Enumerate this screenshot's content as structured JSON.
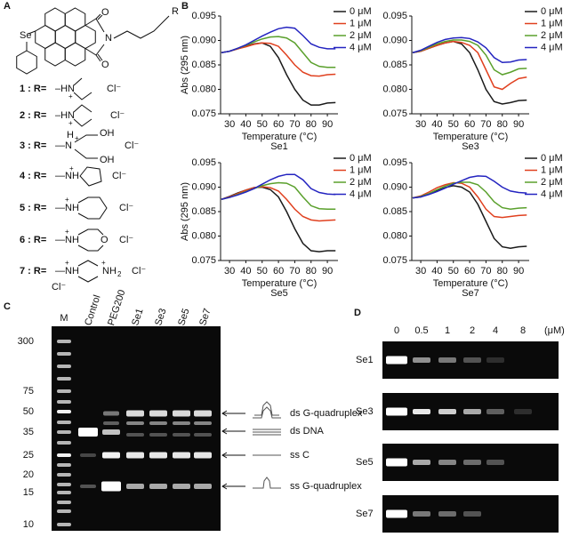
{
  "panel_a": {
    "label": "A",
    "core": {
      "selenium": "Se",
      "oxygen_top": "O",
      "nitrogen": "N",
      "r_group": "R",
      "oxygen_bottom": "O"
    },
    "compounds": [
      {
        "label": "1 :  R=",
        "atoms": [
          "–HN",
          "+"
        ],
        "counterions": [
          "Cl⁻"
        ]
      },
      {
        "label": "2 :  R=",
        "atoms": [
          "–HN",
          "+"
        ],
        "counterions": [
          "Cl⁻"
        ]
      },
      {
        "label": "3 :  R=",
        "atoms": [
          "—N",
          "H",
          "+",
          "OH",
          "OH"
        ],
        "counterions": [
          "Cl⁻"
        ]
      },
      {
        "label": "4 :  R=",
        "atoms": [
          "—NH",
          "+"
        ],
        "counterions": [
          "Cl⁻"
        ]
      },
      {
        "label": "5 :  R=",
        "atoms": [
          "—NH",
          "+"
        ],
        "counterions": [
          "Cl⁻"
        ]
      },
      {
        "label": "6 :  R=",
        "atoms": [
          "—NH",
          "+",
          "O"
        ],
        "counterions": [
          "Cl⁻"
        ]
      },
      {
        "label": "7 :  R=",
        "atoms": [
          "—NH",
          "+",
          "NH",
          "2",
          "+"
        ],
        "counterions": [
          "Cl⁻",
          "Cl⁻"
        ]
      }
    ]
  },
  "panel_b": {
    "label": "B"
  },
  "chart_data": [
    {
      "type": "line",
      "subtitle": "Se1",
      "xlabel": "Temperature (°C)",
      "ylabel": "Abs (295 nm)",
      "x": [
        25,
        30,
        35,
        40,
        45,
        50,
        55,
        60,
        65,
        70,
        75,
        80,
        85,
        90,
        95
      ],
      "xlim": [
        24.5,
        96.5
      ],
      "xticks": [
        30,
        40,
        50,
        60,
        70,
        80,
        90
      ],
      "ylim": [
        0.075,
        0.095
      ],
      "yticks": [
        0.075,
        {
          "value": 0.08,
          "label": "0.080"
        },
        0.085,
        {
          "value": 0.09,
          "label": "0.090"
        },
        0.095
      ],
      "series": [
        {
          "name": "0 μM",
          "color": "#1a1a1a",
          "values": [
            0.0875,
            0.0878,
            0.0883,
            0.0888,
            0.0893,
            0.0895,
            0.0888,
            0.0865,
            0.083,
            0.08,
            0.0778,
            0.0768,
            0.0768,
            0.0772,
            0.0773
          ]
        },
        {
          "name": "1 μM",
          "color": "#e0401f",
          "values": [
            0.0875,
            0.0878,
            0.0883,
            0.0887,
            0.0892,
            0.0895,
            0.0894,
            0.0888,
            0.087,
            0.085,
            0.0835,
            0.0828,
            0.0827,
            0.083,
            0.0831
          ]
        },
        {
          "name": "2 μM",
          "color": "#5aa02c",
          "values": [
            0.0875,
            0.0878,
            0.0884,
            0.089,
            0.0897,
            0.0903,
            0.0907,
            0.0908,
            0.0905,
            0.0895,
            0.0875,
            0.0855,
            0.0847,
            0.0845,
            0.0845
          ]
        },
        {
          "name": "4 μM",
          "color": "#2424c0",
          "values": [
            0.0875,
            0.0878,
            0.0884,
            0.0891,
            0.09,
            0.0909,
            0.0917,
            0.0924,
            0.0927,
            0.0925,
            0.091,
            0.0893,
            0.0886,
            0.0883,
            0.0883
          ]
        }
      ]
    },
    {
      "type": "line",
      "subtitle": "Se3",
      "xlabel": "Temperature (°C)",
      "x": [
        25,
        30,
        35,
        40,
        45,
        50,
        55,
        60,
        65,
        70,
        75,
        80,
        85,
        90,
        95
      ],
      "xlim": [
        24.5,
        96.5
      ],
      "xticks": [
        30,
        40,
        50,
        60,
        70,
        80,
        90
      ],
      "ylim": [
        0.075,
        0.095
      ],
      "yticks": [
        0.075,
        {
          "value": 0.08,
          "label": "0.080"
        },
        0.085,
        {
          "value": 0.09,
          "label": "0.090"
        },
        0.095
      ],
      "series": [
        {
          "name": "0 μM",
          "color": "#1a1a1a",
          "values": [
            0.0875,
            0.0878,
            0.0884,
            0.089,
            0.0895,
            0.0898,
            0.0893,
            0.0875,
            0.084,
            0.08,
            0.0775,
            0.077,
            0.0773,
            0.0777,
            0.0778
          ]
        },
        {
          "name": "1 μM",
          "color": "#e0401f",
          "values": [
            0.0875,
            0.0878,
            0.0884,
            0.089,
            0.0895,
            0.0898,
            0.0896,
            0.089,
            0.0875,
            0.084,
            0.0805,
            0.08,
            0.0812,
            0.0822,
            0.0825
          ]
        },
        {
          "name": "2 μM",
          "color": "#5aa02c",
          "values": [
            0.0875,
            0.0879,
            0.0886,
            0.0893,
            0.0898,
            0.0901,
            0.0901,
            0.0898,
            0.089,
            0.087,
            0.084,
            0.083,
            0.0835,
            0.0842,
            0.0843
          ]
        },
        {
          "name": "4 μM",
          "color": "#2424c0",
          "values": [
            0.0875,
            0.088,
            0.0888,
            0.0896,
            0.0902,
            0.0905,
            0.0906,
            0.0904,
            0.0897,
            0.0885,
            0.0865,
            0.0855,
            0.0856,
            0.086,
            0.0861
          ]
        }
      ]
    },
    {
      "type": "line",
      "subtitle": "Se5",
      "xlabel": "Temperature (°C)",
      "ylabel": "Abs (295 nm)",
      "x": [
        25,
        30,
        35,
        40,
        45,
        50,
        55,
        60,
        65,
        70,
        75,
        80,
        85,
        90,
        95
      ],
      "xlim": [
        24.5,
        96.5
      ],
      "xticks": [
        30,
        40,
        50,
        60,
        70,
        80,
        90
      ],
      "ylim": [
        0.075,
        0.095
      ],
      "yticks": [
        0.075,
        {
          "value": 0.08,
          "label": "0.080"
        },
        0.085,
        {
          "value": 0.09,
          "label": "0.090"
        },
        0.095
      ],
      "series": [
        {
          "name": "0 μM",
          "color": "#1a1a1a",
          "values": [
            0.0875,
            0.0881,
            0.0888,
            0.0894,
            0.0899,
            0.09,
            0.0895,
            0.088,
            0.085,
            0.0815,
            0.0785,
            0.077,
            0.0768,
            0.077,
            0.077
          ]
        },
        {
          "name": "1 μM",
          "color": "#e0401f",
          "values": [
            0.0875,
            0.088,
            0.0887,
            0.0894,
            0.0899,
            0.0901,
            0.0899,
            0.0892,
            0.0875,
            0.0855,
            0.084,
            0.0833,
            0.0831,
            0.0832,
            0.0833
          ]
        },
        {
          "name": "2 μM",
          "color": "#5aa02c",
          "values": [
            0.0875,
            0.0879,
            0.0885,
            0.0891,
            0.0897,
            0.0903,
            0.0907,
            0.0909,
            0.0908,
            0.09,
            0.088,
            0.0862,
            0.0856,
            0.0855,
            0.0855
          ]
        },
        {
          "name": "4 μM",
          "color": "#2424c0",
          "values": [
            0.0875,
            0.0879,
            0.0884,
            0.089,
            0.0897,
            0.0906,
            0.0915,
            0.0922,
            0.0926,
            0.0926,
            0.0915,
            0.0897,
            0.0889,
            0.0886,
            0.0885
          ]
        }
      ]
    },
    {
      "type": "line",
      "subtitle": "Se7",
      "xlabel": "Temperature (°C)",
      "x": [
        25,
        30,
        35,
        40,
        45,
        50,
        55,
        60,
        65,
        70,
        75,
        80,
        85,
        90,
        95
      ],
      "xlim": [
        24.5,
        96.5
      ],
      "xticks": [
        30,
        40,
        50,
        60,
        70,
        80,
        90
      ],
      "ylim": [
        0.075,
        0.095
      ],
      "yticks": [
        0.075,
        {
          "value": 0.08,
          "label": "0.080"
        },
        0.085,
        {
          "value": 0.09,
          "label": "0.090"
        },
        0.095
      ],
      "series": [
        {
          "name": "0 μM",
          "color": "#1a1a1a",
          "values": [
            0.0878,
            0.088,
            0.0886,
            0.0893,
            0.0899,
            0.0903,
            0.09,
            0.089,
            0.0865,
            0.083,
            0.0795,
            0.0778,
            0.0775,
            0.0778,
            0.0779
          ]
        },
        {
          "name": "1 μM",
          "color": "#e0401f",
          "values": [
            0.0878,
            0.0882,
            0.089,
            0.0899,
            0.0905,
            0.0909,
            0.0908,
            0.09,
            0.088,
            0.0855,
            0.084,
            0.0838,
            0.084,
            0.0842,
            0.0843
          ]
        },
        {
          "name": "2 μM",
          "color": "#5aa02c",
          "values": [
            0.0878,
            0.0881,
            0.0887,
            0.0895,
            0.0902,
            0.0908,
            0.091,
            0.091,
            0.0905,
            0.089,
            0.087,
            0.0858,
            0.0855,
            0.0857,
            0.0858
          ]
        },
        {
          "name": "4 μM",
          "color": "#2424c0",
          "values": [
            0.0878,
            0.088,
            0.0885,
            0.0891,
            0.0898,
            0.0906,
            0.0913,
            0.092,
            0.0923,
            0.0922,
            0.0912,
            0.09,
            0.0892,
            0.0889,
            0.0888
          ]
        }
      ]
    }
  ],
  "panel_c": {
    "label": "C",
    "marker_lane": "M",
    "lanes": [
      "Control",
      "PEG200",
      "Se1",
      "Se3",
      "Se5",
      "Se7"
    ],
    "ladder": [
      "300",
      "75",
      "50",
      "35",
      "25",
      "20",
      "15",
      "10"
    ],
    "annotations": [
      "ds G-quadruplex",
      "ds DNA",
      "ss C",
      "ss G-quadruplex"
    ]
  },
  "panel_d": {
    "label": "D",
    "concentrations": [
      "0",
      "0.5",
      "1",
      "2",
      "4",
      "8"
    ],
    "unit": "(μM)",
    "rows": [
      "Se1",
      "Se3",
      "Se5",
      "Se7"
    ]
  }
}
